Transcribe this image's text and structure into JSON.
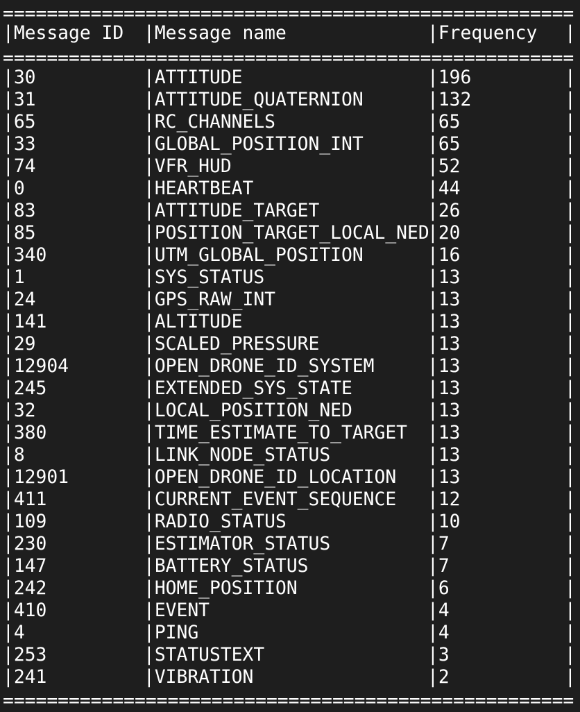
{
  "table": {
    "separator": "====================================================",
    "header": {
      "id": "Message ID",
      "name": "Message name",
      "frequency": "Frequency"
    },
    "rows": [
      {
        "id": "30",
        "name": "ATTITUDE",
        "frequency": "196"
      },
      {
        "id": "31",
        "name": "ATTITUDE_QUATERNION",
        "frequency": "132"
      },
      {
        "id": "65",
        "name": "RC_CHANNELS",
        "frequency": "65"
      },
      {
        "id": "33",
        "name": "GLOBAL_POSITION_INT",
        "frequency": "65"
      },
      {
        "id": "74",
        "name": "VFR_HUD",
        "frequency": "52"
      },
      {
        "id": "0",
        "name": "HEARTBEAT",
        "frequency": "44"
      },
      {
        "id": "83",
        "name": "ATTITUDE_TARGET",
        "frequency": "26"
      },
      {
        "id": "85",
        "name": "POSITION_TARGET_LOCAL_NED",
        "frequency": "20"
      },
      {
        "id": "340",
        "name": "UTM_GLOBAL_POSITION",
        "frequency": "16"
      },
      {
        "id": "1",
        "name": "SYS_STATUS",
        "frequency": "13"
      },
      {
        "id": "24",
        "name": "GPS_RAW_INT",
        "frequency": "13"
      },
      {
        "id": "141",
        "name": "ALTITUDE",
        "frequency": "13"
      },
      {
        "id": "29",
        "name": "SCALED_PRESSURE",
        "frequency": "13"
      },
      {
        "id": "12904",
        "name": "OPEN_DRONE_ID_SYSTEM",
        "frequency": "13"
      },
      {
        "id": "245",
        "name": "EXTENDED_SYS_STATE",
        "frequency": "13"
      },
      {
        "id": "32",
        "name": "LOCAL_POSITION_NED",
        "frequency": "13"
      },
      {
        "id": "380",
        "name": "TIME_ESTIMATE_TO_TARGET",
        "frequency": "13"
      },
      {
        "id": "8",
        "name": "LINK_NODE_STATUS",
        "frequency": "13"
      },
      {
        "id": "12901",
        "name": "OPEN_DRONE_ID_LOCATION",
        "frequency": "13"
      },
      {
        "id": "411",
        "name": "CURRENT_EVENT_SEQUENCE",
        "frequency": "12"
      },
      {
        "id": "109",
        "name": "RADIO_STATUS",
        "frequency": "10"
      },
      {
        "id": "230",
        "name": "ESTIMATOR_STATUS",
        "frequency": "7"
      },
      {
        "id": "147",
        "name": "BATTERY_STATUS",
        "frequency": "7"
      },
      {
        "id": "242",
        "name": "HOME_POSITION",
        "frequency": "6"
      },
      {
        "id": "410",
        "name": "EVENT",
        "frequency": "4"
      },
      {
        "id": "4",
        "name": "PING",
        "frequency": "4"
      },
      {
        "id": "253",
        "name": "STATUSTEXT",
        "frequency": "3"
      },
      {
        "id": "241",
        "name": "VIBRATION",
        "frequency": "2"
      }
    ]
  }
}
